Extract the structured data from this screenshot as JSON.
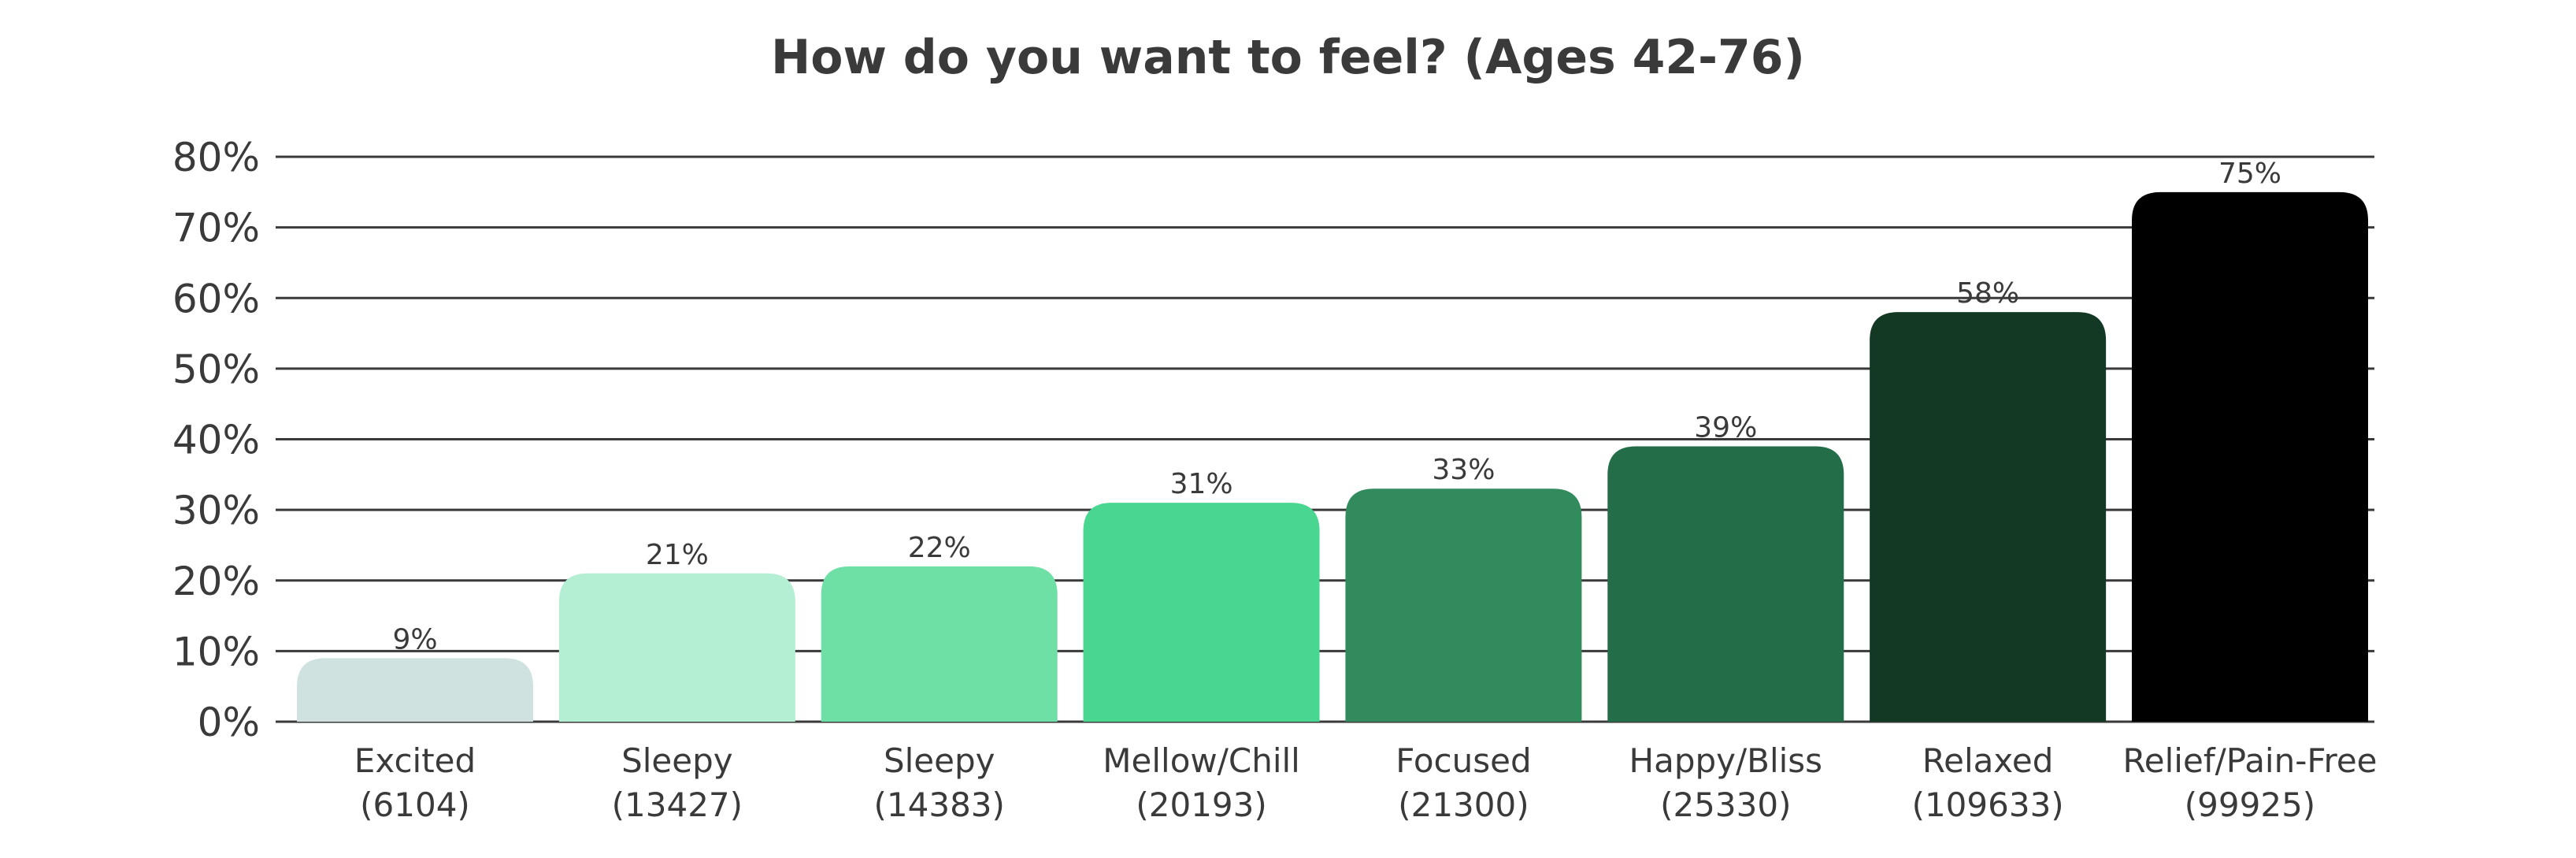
{
  "chart_data": {
    "type": "bar",
    "title": "How do you want to feel? (Ages 42-76)",
    "categories": [
      "Excited",
      "Sleepy",
      "Sleepy",
      "Mellow/Chill",
      "Focused",
      "Happy/Bliss",
      "Relaxed",
      "Relief/Pain-Free"
    ],
    "counts": [
      "(6104)",
      "(13427)",
      "(14383)",
      "(20193)",
      "(21300)",
      "(25330)",
      "(109633)",
      "(99925)"
    ],
    "values": [
      9,
      21,
      22,
      31,
      33,
      39,
      58,
      75
    ],
    "value_labels": [
      "9%",
      "21%",
      "22%",
      "31%",
      "33%",
      "39%",
      "58%",
      "75%"
    ],
    "colors": [
      "#cfe2df",
      "#b4eed3",
      "#6ee0a6",
      "#48d690",
      "#318b5d",
      "#236e49",
      "#133824",
      "#000000"
    ],
    "ylim": [
      0,
      80
    ],
    "yticks": [
      "0%",
      "10%",
      "20%",
      "30%",
      "40%",
      "50%",
      "60%",
      "70%",
      "80%"
    ],
    "grid": true,
    "legend": "none"
  }
}
